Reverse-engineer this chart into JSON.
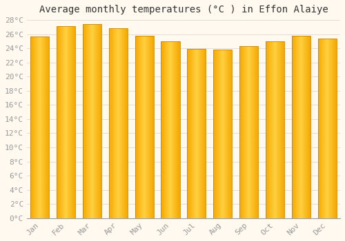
{
  "title": "Average monthly temperatures (°C ) in Effon Alaiye",
  "months": [
    "Jan",
    "Feb",
    "Mar",
    "Apr",
    "May",
    "Jun",
    "Jul",
    "Aug",
    "Sep",
    "Oct",
    "Nov",
    "Dec"
  ],
  "values": [
    25.7,
    27.1,
    27.4,
    26.8,
    25.8,
    25.0,
    23.9,
    23.8,
    24.3,
    25.0,
    25.8,
    25.4
  ],
  "bar_color_center": "#FFD040",
  "bar_color_edge": "#F5A800",
  "bar_border_color": "#C8860A",
  "ylim": [
    0,
    28
  ],
  "ytick_step": 2,
  "background_color": "#FFF9F0",
  "plot_bg_color": "#FFF9F0",
  "grid_color": "#E0D8D0",
  "title_fontsize": 10,
  "tick_fontsize": 8,
  "tick_color": "#999999",
  "title_color": "#333333"
}
